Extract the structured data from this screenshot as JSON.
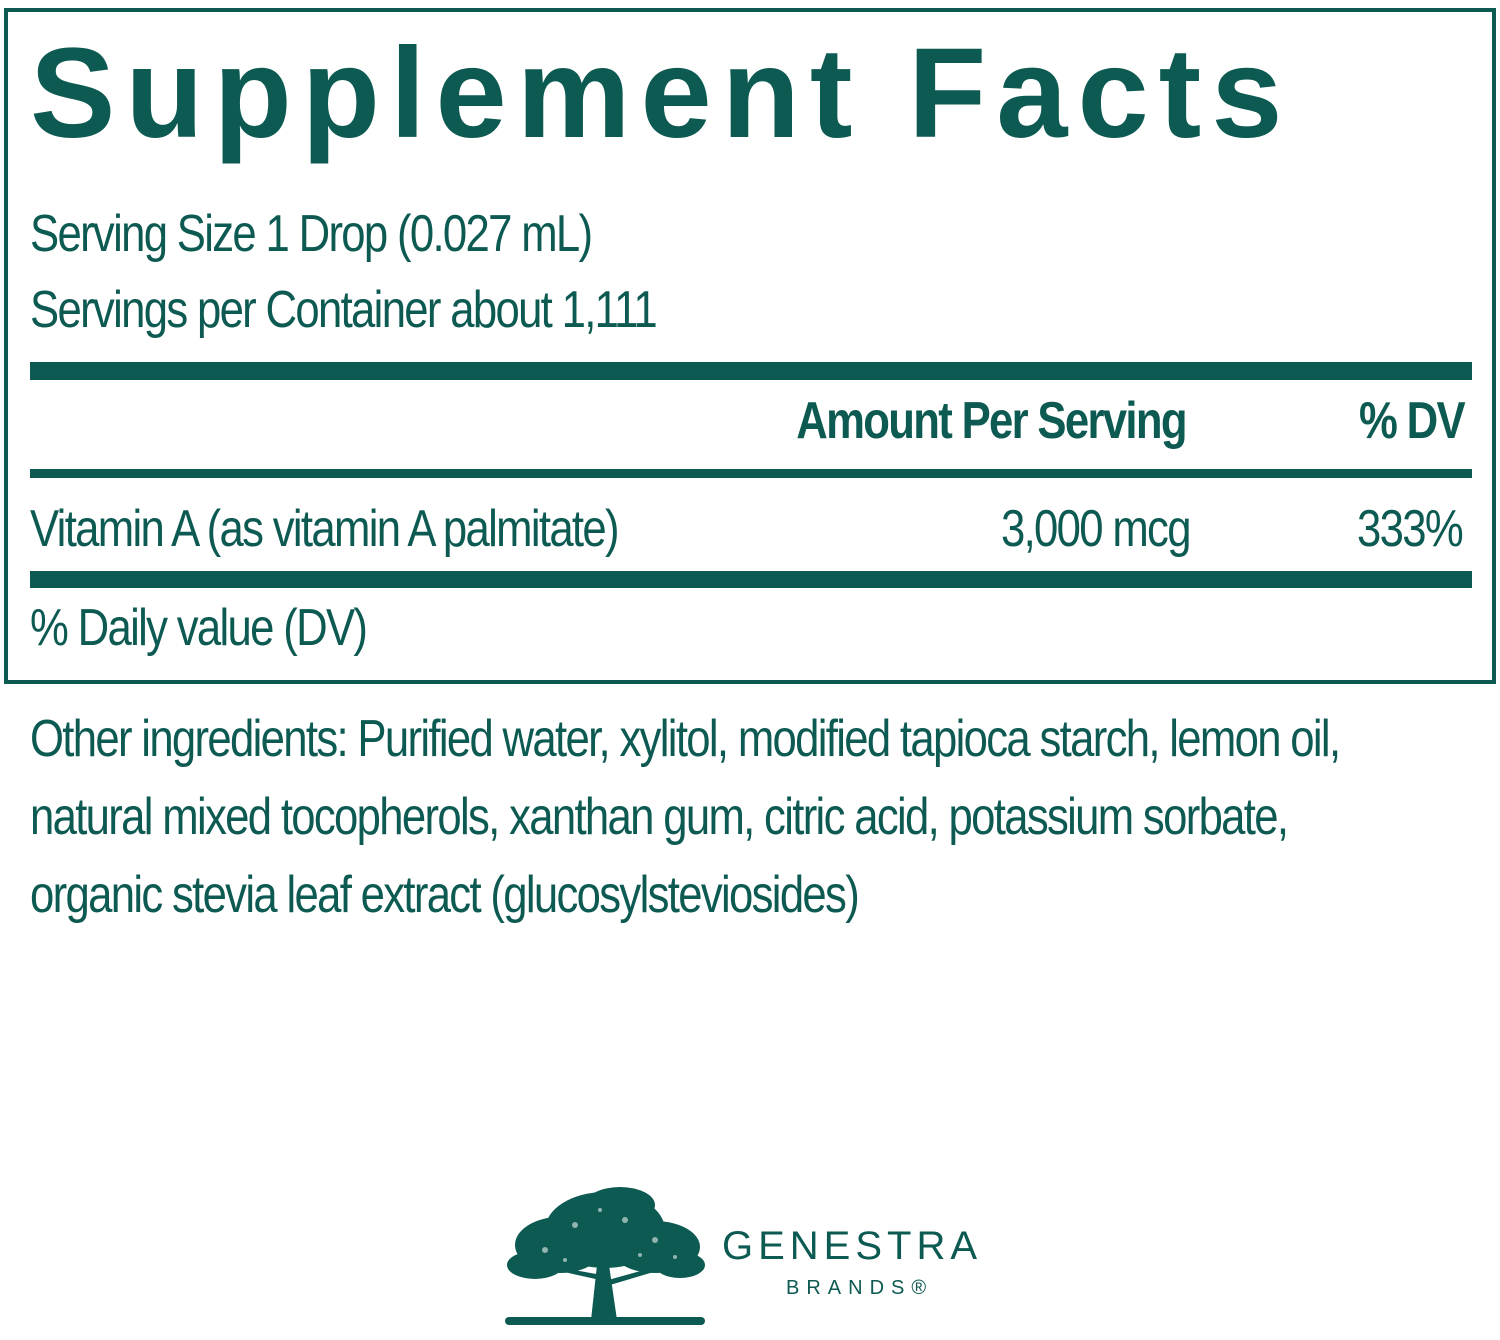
{
  "panel": {
    "title": "Supplement Facts",
    "serving_size": "Serving Size 1 Drop (0.027 mL)",
    "servings_per_container": "Servings per Container about 1,111",
    "headers": {
      "amount": "Amount Per Serving",
      "dv": "% DV"
    },
    "rows": [
      {
        "name": "Vitamin A (as vitamin A palmitate)",
        "amount": "3,000 mcg",
        "dv": "333%"
      }
    ],
    "footnote": "% Daily value (DV)"
  },
  "other_ingredients": "Other ingredients: Purified water, xylitol, modified tapioca starch, lemon oil, natural mixed tocopherols, xanthan gum, citric acid, potassium sorbate, organic stevia leaf extract (glucosylsteviosides)",
  "logo": {
    "name": "GENESTRA",
    "sub": "BRANDS®",
    "icon": "tree-icon"
  },
  "colors": {
    "brand": "#0d5a52"
  }
}
